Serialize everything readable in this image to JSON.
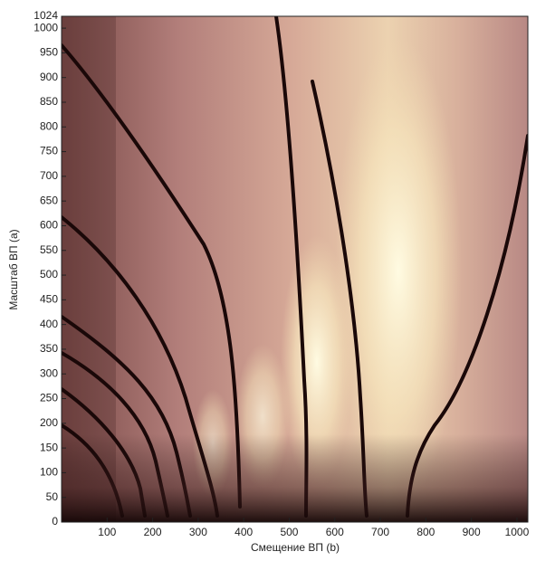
{
  "chart_data": {
    "type": "heatmap",
    "xlabel": "Смещение ВП (b)",
    "ylabel": "Масштаб ВП (a)",
    "xlim": [
      0,
      1024
    ],
    "ylim": [
      0,
      1024
    ],
    "xticks": [
      100,
      200,
      300,
      400,
      500,
      600,
      700,
      800,
      900,
      1000
    ],
    "yticks": [
      0,
      50,
      100,
      150,
      200,
      250,
      300,
      350,
      400,
      450,
      500,
      550,
      600,
      650,
      700,
      750,
      800,
      850,
      900,
      950,
      1000,
      1024
    ],
    "grid": false
  }
}
